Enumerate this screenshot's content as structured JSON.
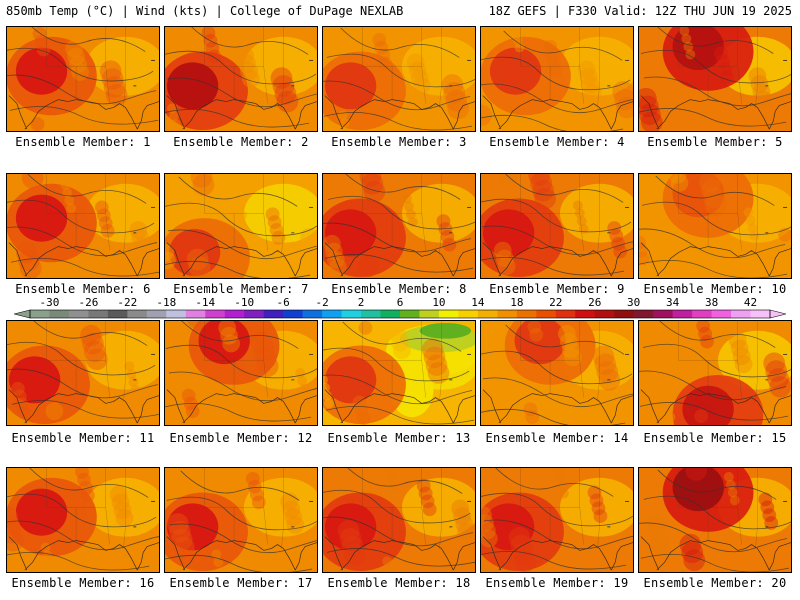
{
  "header": {
    "left": "850mb Temp (°C) | Wind (kts) | College of DuPage NEXLAB",
    "right": "18Z GEFS | F330 Valid: 12Z THU JUN 19 2025"
  },
  "panels": [
    {
      "label": "Ensemble Member: 1",
      "base": "#f08a00",
      "hot": "#d81a10",
      "warm": "#e8540a",
      "cool": "#f7b400",
      "green": false,
      "hotspot": "nw"
    },
    {
      "label": "Ensemble Member: 2",
      "base": "#f08a00",
      "hot": "#b81210",
      "warm": "#e23a10",
      "cool": "#f7b400",
      "green": false,
      "hotspot": "w"
    },
    {
      "label": "Ensemble Member: 3",
      "base": "#f29400",
      "hot": "#e23a10",
      "warm": "#ec6a06",
      "cool": "#f7b400",
      "green": false,
      "hotspot": "w"
    },
    {
      "label": "Ensemble Member: 4",
      "base": "#f29400",
      "hot": "#e23a10",
      "warm": "#ec6a06",
      "cool": "#f7b400",
      "green": false,
      "hotspot": "nw"
    },
    {
      "label": "Ensemble Member: 5",
      "base": "#ec7a04",
      "hot": "#b81210",
      "warm": "#d81a10",
      "cool": "#f7c800",
      "green": false,
      "hotspot": "n"
    },
    {
      "label": "Ensemble Member: 6",
      "base": "#f08a00",
      "hot": "#d81a10",
      "warm": "#e8540a",
      "cool": "#f7b400",
      "green": false,
      "hotspot": "nw"
    },
    {
      "label": "Ensemble Member: 7",
      "base": "#f4a000",
      "hot": "#e23a10",
      "warm": "#ec6a06",
      "cool": "#f5d400",
      "green": false,
      "hotspot": "sw"
    },
    {
      "label": "Ensemble Member: 8",
      "base": "#ec7a04",
      "hot": "#d81a10",
      "warm": "#e23a10",
      "cool": "#f7b400",
      "green": false,
      "hotspot": "w"
    },
    {
      "label": "Ensemble Member: 9",
      "base": "#ec7a04",
      "hot": "#d81a10",
      "warm": "#e23a10",
      "cool": "#f7b400",
      "green": false,
      "hotspot": "w"
    },
    {
      "label": "Ensemble Member: 10",
      "base": "#f29400",
      "hot": "#e8540a",
      "warm": "#ec6a06",
      "cool": "#f7b400",
      "green": false,
      "hotspot": "n"
    },
    {
      "label": "Ensemble Member: 11",
      "base": "#f08a00",
      "hot": "#d81a10",
      "warm": "#e8540a",
      "cool": "#f7b400",
      "green": false,
      "hotspot": "w"
    },
    {
      "label": "Ensemble Member: 12",
      "base": "#f08a00",
      "hot": "#d81a10",
      "warm": "#e8540a",
      "cool": "#f7b400",
      "green": false,
      "hotspot": "n"
    },
    {
      "label": "Ensemble Member: 13",
      "base": "#f7b400",
      "hot": "#e23a10",
      "warm": "#ec6a06",
      "cool": "#f5e000",
      "green": true,
      "hotspot": "w"
    },
    {
      "label": "Ensemble Member: 14",
      "base": "#f29400",
      "hot": "#e23a10",
      "warm": "#ec6a06",
      "cool": "#f7b400",
      "green": false,
      "hotspot": "n"
    },
    {
      "label": "Ensemble Member: 15",
      "base": "#f08a00",
      "hot": "#c81810",
      "warm": "#e23a10",
      "cool": "#f7c800",
      "green": false,
      "hotspot": "s"
    },
    {
      "label": "Ensemble Member: 16",
      "base": "#f08a00",
      "hot": "#d81a10",
      "warm": "#e8540a",
      "cool": "#f7b400",
      "green": false,
      "hotspot": "nw"
    },
    {
      "label": "Ensemble Member: 17",
      "base": "#f08a00",
      "hot": "#d81a10",
      "warm": "#e8540a",
      "cool": "#f7b400",
      "green": false,
      "hotspot": "w"
    },
    {
      "label": "Ensemble Member: 18",
      "base": "#ec7a04",
      "hot": "#d81a10",
      "warm": "#e23a10",
      "cool": "#f7b400",
      "green": false,
      "hotspot": "w"
    },
    {
      "label": "Ensemble Member: 19",
      "base": "#ec7a04",
      "hot": "#d81a10",
      "warm": "#e23a10",
      "cool": "#f7b400",
      "green": false,
      "hotspot": "w"
    },
    {
      "label": "Ensemble Member: 20",
      "base": "#ec7a04",
      "hot": "#a01010",
      "warm": "#d81a10",
      "cool": "#f7b400",
      "green": false,
      "hotspot": "n"
    }
  ],
  "colorbar": {
    "ticks": [
      "-30",
      "-26",
      "-22",
      "-18",
      "-14",
      "-10",
      "-6",
      "-2",
      "2",
      "6",
      "10",
      "14",
      "18",
      "22",
      "26",
      "30",
      "34",
      "38",
      "42"
    ],
    "colors": [
      "#8aa08a",
      "#7a8a7a",
      "#909090",
      "#787878",
      "#5a5a5a",
      "#8a8a8a",
      "#a0a0b0",
      "#c0c0e0",
      "#e080e0",
      "#d040d0",
      "#b020d0",
      "#8020c0",
      "#4020c0",
      "#1040d0",
      "#1070e0",
      "#10a0f0",
      "#20d0e0",
      "#20c0a0",
      "#10b060",
      "#60b020",
      "#c0d020",
      "#f0f000",
      "#f8d000",
      "#f4b000",
      "#f09000",
      "#ec7000",
      "#e85000",
      "#e03010",
      "#d01010",
      "#b01010",
      "#901010",
      "#801830",
      "#a01060",
      "#c020a0",
      "#e040c0",
      "#f060e0",
      "#f0a0f0",
      "#f8c0f8"
    ]
  }
}
